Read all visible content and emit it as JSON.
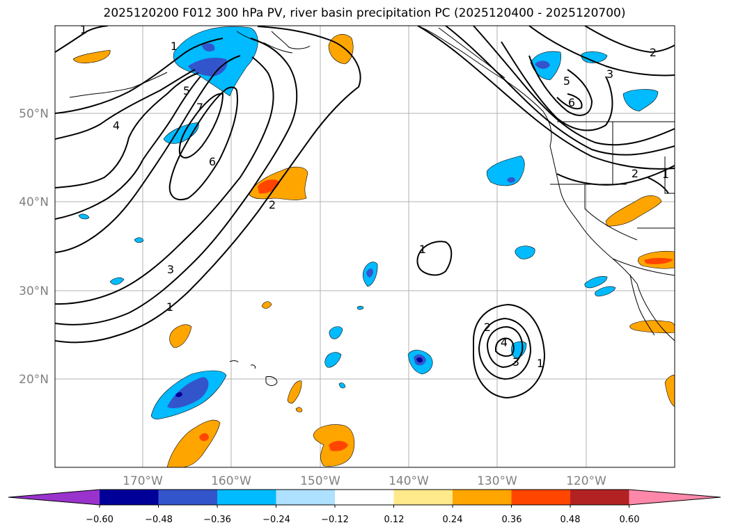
{
  "title": "2025120200 F012 300 hPa PV, river basin precipitation PC (2025120400 - 2025120700)",
  "map": {
    "lat_ticks": [
      "50°N",
      "40°N",
      "30°N",
      "20°N"
    ],
    "lon_ticks": [
      "170°W",
      "160°W",
      "150°W",
      "140°W",
      "130°W",
      "120°W"
    ],
    "contour_labels": [
      "1",
      "1",
      "4",
      "5",
      "7",
      "6",
      "2",
      "3",
      "1",
      "1",
      "2",
      "3",
      "5",
      "6",
      "2",
      "1",
      "2",
      "4",
      "3",
      "1"
    ]
  },
  "colorbar": {
    "ticks": [
      "−0.60",
      "−0.48",
      "−0.36",
      "−0.24",
      "−0.12",
      "0.12",
      "0.24",
      "0.36",
      "0.48",
      "0.60"
    ],
    "colors": [
      "#9933cc",
      "#000099",
      "#3355cc",
      "#00bbff",
      "#aee0ff",
      "#ffffff",
      "#ffe98a",
      "#ffa500",
      "#ff4500",
      "#b22222",
      "#ff88aa"
    ]
  }
}
